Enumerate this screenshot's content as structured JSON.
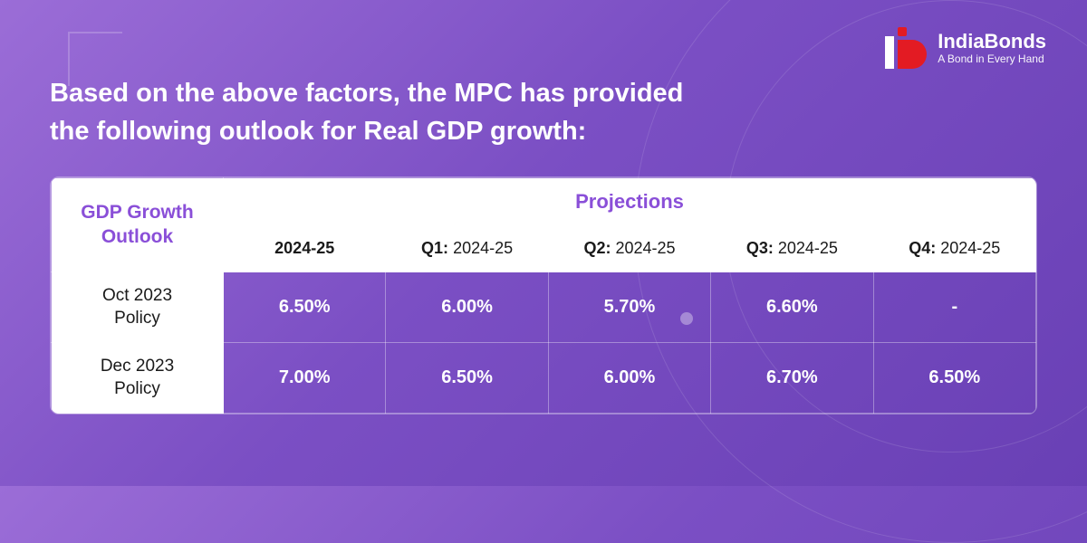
{
  "brand": {
    "name": "IndiaBonds",
    "tagline": "A Bond in Every Hand"
  },
  "heading_line1": "Based on the above factors, the MPC has provided",
  "heading_line2": "the following outlook for Real GDP growth:",
  "table": {
    "outlook_header_l1": "GDP Growth",
    "outlook_header_l2": "Outlook",
    "projections_header": "Projections",
    "periods": [
      {
        "bold": "2024-25",
        "rest": ""
      },
      {
        "bold": "Q1:",
        "rest": " 2024-25"
      },
      {
        "bold": "Q2:",
        "rest": " 2024-25"
      },
      {
        "bold": "Q3:",
        "rest": " 2024-25"
      },
      {
        "bold": "Q4:",
        "rest": " 2024-25"
      }
    ],
    "rows": [
      {
        "label_l1": "Oct 2023",
        "label_l2": "Policy",
        "values": [
          "6.50%",
          "6.00%",
          "5.70%",
          "6.60%",
          "-"
        ]
      },
      {
        "label_l1": "Dec 2023",
        "label_l2": "Policy",
        "values": [
          "7.00%",
          "6.50%",
          "6.00%",
          "6.70%",
          "6.50%"
        ]
      }
    ]
  },
  "colors": {
    "accent_purple": "#8a4fd8",
    "brand_red": "#e31b23",
    "white": "#ffffff",
    "text_dark": "#1a1a1a"
  }
}
